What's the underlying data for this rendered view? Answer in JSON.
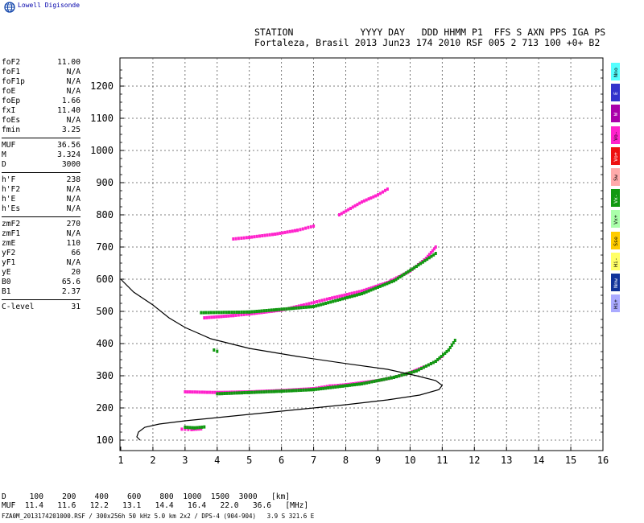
{
  "logo": {
    "text": "Lowell Digisonde",
    "icon": "globe-icon"
  },
  "header": {
    "line1": "STATION            YYYY DAY   DDD HHMM P1  FFS S AXN PPS IGA PS",
    "line2": "Fortaleza, Brasil 2013 Jun23 174 2010 RSF 005 2 713 100 +0+ B2"
  },
  "params": [
    {
      "label": "foF2",
      "value": "11.00"
    },
    {
      "label": "foF1",
      "value": "N/A"
    },
    {
      "label": "foF1p",
      "value": "N/A"
    },
    {
      "label": "foE",
      "value": "N/A"
    },
    {
      "label": "foEp",
      "value": "1.66"
    },
    {
      "label": "fxI",
      "value": "11.40"
    },
    {
      "label": "foEs",
      "value": "N/A"
    },
    {
      "label": "fmin",
      "value": "3.25"
    },
    {
      "sep": true
    },
    {
      "label": "MUF",
      "value": "36.56"
    },
    {
      "label": "M",
      "value": "3.324"
    },
    {
      "label": "D",
      "value": "3000"
    },
    {
      "sep": true
    },
    {
      "label": "h'F",
      "value": "238"
    },
    {
      "label": "h'F2",
      "value": "N/A"
    },
    {
      "label": "h'E",
      "value": "N/A"
    },
    {
      "label": "h'Es",
      "value": "N/A"
    },
    {
      "sep": true
    },
    {
      "label": "zmF2",
      "value": "270"
    },
    {
      "label": "zmF1",
      "value": "N/A"
    },
    {
      "label": "zmE",
      "value": "110"
    },
    {
      "label": "yF2",
      "value": "66"
    },
    {
      "label": "yF1",
      "value": "N/A"
    },
    {
      "label": "yE",
      "value": "20"
    },
    {
      "label": "B0",
      "value": "65.6"
    },
    {
      "label": "B1",
      "value": "2.37"
    },
    {
      "sep": true
    },
    {
      "label": "C-level",
      "value": "31"
    }
  ],
  "legend": [
    {
      "label": "Nno",
      "color": "#55ffff"
    },
    {
      "label": "E",
      "color": "#3333cc"
    },
    {
      "label": "W",
      "color": "#aa00aa"
    },
    {
      "label": "Vo-",
      "color": "#ff22cc"
    },
    {
      "label": "Vo+",
      "color": "#ee1111"
    },
    {
      "label": "Sw",
      "color": "#ffaaaa"
    },
    {
      "label": "Vx-",
      "color": "#119911"
    },
    {
      "label": "Vx+",
      "color": "#aaffaa"
    },
    {
      "label": "Sse",
      "color": "#ffcc00"
    },
    {
      "label": "Hi-",
      "color": "#ffff66"
    },
    {
      "label": "Nnw",
      "color": "#113399"
    },
    {
      "label": "Hi+",
      "color": "#aaaaff"
    }
  ],
  "footer": {
    "d_row": "D     100    200    400    600    800  1000  1500  3000   [km]",
    "muf_row": "MUF  11.4   11.6   12.2   13.1   14.4   16.4   22.0   36.6   [MHz]",
    "filename": "FZA0M_2013174201000.RSF / 300x256h 50 kHz 5.0 km 2x2 / DPS-4 (904-904)   3.9 S 321.6 E"
  },
  "chart_data": {
    "type": "scatter",
    "title": "",
    "xlabel": "",
    "ylabel": "",
    "xlim": [
      1,
      16
    ],
    "ylim": [
      75,
      1275
    ],
    "xticks": [
      1,
      2,
      3,
      4,
      5,
      6,
      7,
      8,
      9,
      10,
      11,
      12,
      13,
      14,
      15,
      16
    ],
    "yticks": [
      100,
      200,
      300,
      400,
      500,
      600,
      700,
      800,
      900,
      1000,
      1100,
      1200
    ],
    "grid": true,
    "profile_curve": {
      "name": "",
      "x": [
        1.6,
        1.5,
        1.55,
        1.75,
        2.2,
        3.0,
        4.5,
        6.5,
        8.0,
        9.3,
        10.3,
        10.9,
        11.0,
        10.8,
        10.2,
        9.3,
        8.0,
        6.5,
        5.0,
        3.8,
        3.0,
        2.5,
        2.0,
        1.4,
        1.0
      ],
      "y": [
        100,
        110,
        125,
        140,
        150,
        160,
        175,
        195,
        210,
        225,
        240,
        257,
        270,
        285,
        300,
        320,
        338,
        360,
        385,
        415,
        450,
        480,
        520,
        560,
        600
      ]
    },
    "traces": [
      {
        "name": "",
        "color": "#ff22cc",
        "x": [
          2.9,
          3.2,
          3.5
        ],
        "y": [
          134,
          133,
          135
        ]
      },
      {
        "name": "",
        "color": "#ff22cc",
        "x": [
          3.0,
          4.0,
          5.0,
          6.0,
          7.0,
          7.5,
          8.0,
          9.0,
          9.5,
          10.0,
          10.5,
          10.8,
          11.0
        ],
        "y": [
          250,
          248,
          250,
          254,
          260,
          268,
          272,
          285,
          295,
          310,
          330,
          345,
          360
        ]
      },
      {
        "name": "",
        "color": "#ff22cc",
        "x": [
          3.6,
          4.5,
          5.0,
          6.0,
          6.7,
          7.5,
          8.5,
          9.3,
          10.0,
          10.5,
          10.8
        ],
        "y": [
          480,
          487,
          492,
          504,
          520,
          540,
          563,
          590,
          625,
          665,
          700
        ]
      },
      {
        "name": "",
        "color": "#ff22cc",
        "x": [
          4.5,
          5.0,
          5.8,
          6.5,
          7.0
        ],
        "y": [
          725,
          730,
          740,
          752,
          765
        ]
      },
      {
        "name": "",
        "color": "#ff22cc",
        "x": [
          7.8,
          8.5,
          9.0,
          9.3
        ],
        "y": [
          800,
          840,
          862,
          880
        ]
      },
      {
        "name": "",
        "color": "#119911",
        "x": [
          3.0,
          3.3,
          3.6
        ],
        "y": [
          140,
          138,
          141
        ]
      },
      {
        "name": "",
        "color": "#119911",
        "x": [
          4.0,
          5.0,
          6.0,
          7.0,
          8.5,
          9.5,
          10.2,
          10.8,
          11.2,
          11.4
        ],
        "y": [
          244,
          248,
          252,
          257,
          275,
          295,
          315,
          345,
          380,
          410
        ]
      },
      {
        "name": "",
        "color": "#119911",
        "x": [
          3.5,
          5.0,
          7.0,
          8.5,
          9.5,
          10.2,
          10.8
        ],
        "y": [
          496,
          498,
          515,
          555,
          595,
          640,
          680
        ]
      },
      {
        "name": "",
        "color": "#119911",
        "x": [
          3.9,
          4.0
        ],
        "y": [
          380,
          376
        ]
      }
    ]
  }
}
